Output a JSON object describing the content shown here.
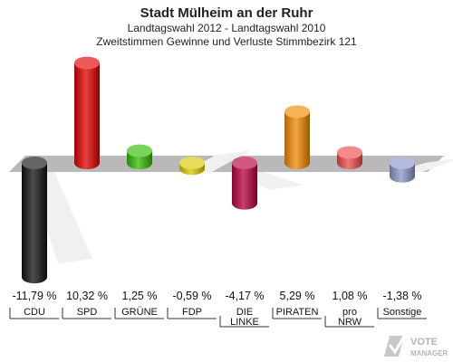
{
  "chart_data": {
    "type": "bar",
    "title": "Stadt Mülheim an der Ruhr",
    "subtitle_1": "Landtagswahl 2012 - Landtagswahl 2010",
    "subtitle_2": "Zweitstimmen Gewinne und Verluste Stimmbezirk 121",
    "categories": [
      [
        "CDU"
      ],
      [
        "SPD"
      ],
      [
        "GRÜNE"
      ],
      [
        "FDP"
      ],
      [
        "DIE",
        "LINKE"
      ],
      [
        "PIRATEN"
      ],
      [
        "pro",
        "NRW"
      ],
      [
        "Sonstige"
      ]
    ],
    "values": [
      -11.79,
      10.32,
      1.25,
      -0.59,
      -4.17,
      5.29,
      1.08,
      -1.38
    ],
    "value_labels": [
      "-11,79 %",
      "10,32 %",
      "1,25 %",
      "-0,59 %",
      "-4,17 %",
      "5,29 %",
      "1,08 %",
      "-1,38 %"
    ],
    "colors": [
      "#111111",
      "#e00000",
      "#33bb00",
      "#dcc800",
      "#b8003c",
      "#f08800",
      "#ee4c4c",
      "#8a95c8"
    ],
    "ylim": [
      -12,
      11
    ],
    "grid": false
  },
  "watermark": {
    "text": "VOTE",
    "subtext": "MANAGER"
  }
}
